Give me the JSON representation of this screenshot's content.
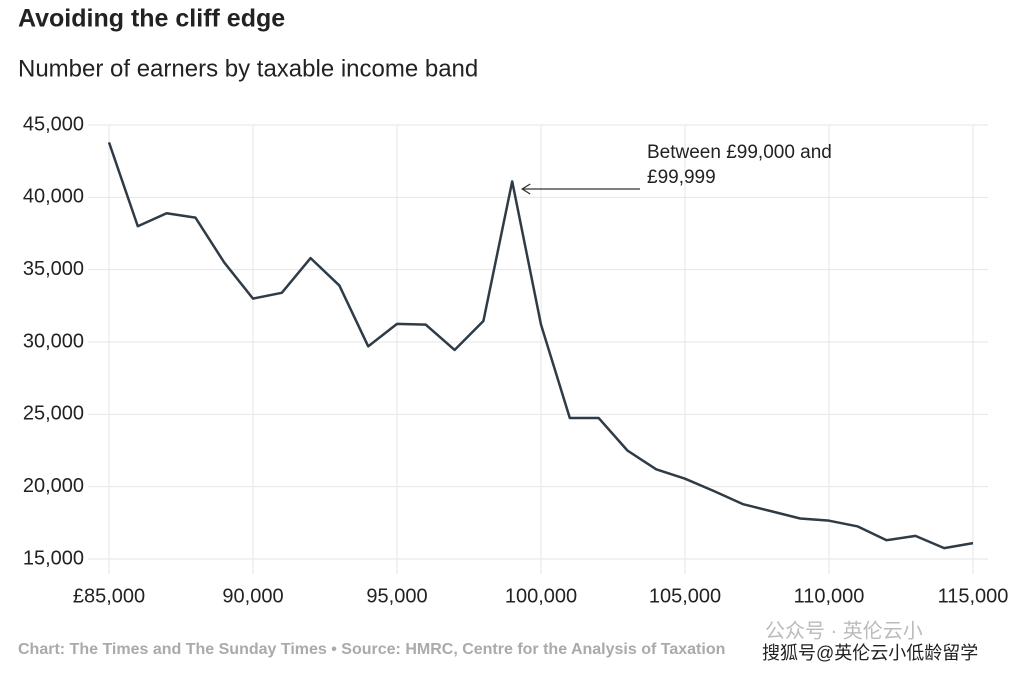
{
  "chart_data": {
    "type": "line",
    "title": "Avoiding the cliff edge",
    "subtitle": "Number of earners by taxable income band",
    "x": [
      85000,
      86000,
      87000,
      88000,
      89000,
      90000,
      91000,
      92000,
      93000,
      94000,
      95000,
      96000,
      97000,
      98000,
      99000,
      100000,
      101000,
      102000,
      103000,
      104000,
      105000,
      106000,
      107000,
      108000,
      109000,
      110000,
      111000,
      112000,
      113000,
      114000,
      115000
    ],
    "series": [
      {
        "name": "Number of earners",
        "color": "#2f3b46",
        "values": [
          43800,
          38000,
          38900,
          38600,
          35500,
          33000,
          33400,
          35800,
          33900,
          29700,
          31250,
          31200,
          29450,
          31450,
          41100,
          31200,
          24750,
          24750,
          22500,
          21200,
          20550,
          19700,
          18800,
          18300,
          17800,
          17650,
          17250,
          16300,
          16600,
          15750,
          16100
        ]
      }
    ],
    "xlim": [
      85000,
      115000
    ],
    "xticks": [
      {
        "value": 85000,
        "label": "£85,000"
      },
      {
        "value": 90000,
        "label": "90,000"
      },
      {
        "value": 95000,
        "label": "95,000"
      },
      {
        "value": 100000,
        "label": "100,000"
      },
      {
        "value": 105000,
        "label": "105,000"
      },
      {
        "value": 110000,
        "label": "110,000"
      },
      {
        "value": 115000,
        "label": "115,000"
      }
    ],
    "ylim": [
      15000,
      45000
    ],
    "yticks": [
      {
        "value": 15000,
        "label": "15,000"
      },
      {
        "value": 20000,
        "label": "20,000"
      },
      {
        "value": 25000,
        "label": "25,000"
      },
      {
        "value": 30000,
        "label": "30,000"
      },
      {
        "value": 35000,
        "label": "35,000"
      },
      {
        "value": 40000,
        "label": "40,000"
      },
      {
        "value": 45000,
        "label": "45,000"
      }
    ],
    "grid": true,
    "annotation": [
      "Between £99,000 and",
      "£99,999"
    ],
    "source": "Chart: The Times and The Sunday Times • Source: HMRC, Centre for the Analysis of Taxation",
    "watermark": [
      "公众号 · 英伦云小",
      "搜狐号@英伦云小低龄留学"
    ]
  }
}
